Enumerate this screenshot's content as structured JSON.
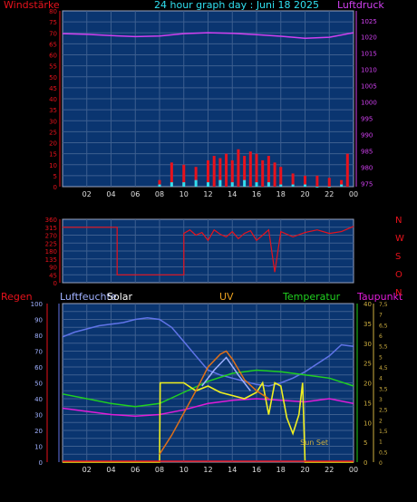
{
  "header": {
    "left_label": "Windstärke",
    "title": "24 hour graph day : Juni 18 2025",
    "right_label": "Luftdruck"
  },
  "colors": {
    "plot_bg": "#0a3570",
    "grid": "#3d5f8f",
    "red": "#e8121c",
    "magenta": "#d040f0",
    "cyan": "#30e0f0",
    "white": "#ffffff",
    "periwinkle": "#8b95f5",
    "blue": "#6074e8",
    "lightblue": "#9fb0ff",
    "orange": "#e07018",
    "green": "#20d020",
    "yellow": "#f0f020",
    "pink": "#e01cd8",
    "gold": "#d0b040"
  },
  "chart_data": [
    {
      "type": "bar",
      "name_id": "wind",
      "xlabel": "",
      "x_ticks": [
        "02",
        "04",
        "06",
        "08",
        "10",
        "12",
        "14",
        "16",
        "18",
        "20",
        "22",
        "00"
      ],
      "y_left_ticks": [
        "0",
        "5",
        "10",
        "15",
        "20",
        "25",
        "30",
        "35",
        "40",
        "45",
        "50",
        "55",
        "60",
        "65",
        "70",
        "75",
        "80"
      ],
      "y_left_range": [
        0,
        80
      ],
      "y_right_ticks": [
        "975",
        "980",
        "985",
        "990",
        "995",
        "1000",
        "1005",
        "1010",
        "1015",
        "1020",
        "1025"
      ],
      "y_right_range": [
        974,
        1028
      ],
      "series": [
        {
          "color": "magenta",
          "axis": "right",
          "x": [
            0,
            2,
            4,
            6,
            8,
            10,
            12,
            14,
            16,
            18,
            20,
            22,
            24
          ],
          "y": [
            1021.0,
            1020.8,
            1020.4,
            1020.1,
            1020.3,
            1021.0,
            1021.3,
            1021.1,
            1020.7,
            1020.2,
            1019.6,
            1019.9,
            1021.3
          ]
        },
        {
          "color": "red",
          "axis": "left",
          "x": [
            8.0,
            9.0,
            10.0,
            11.0,
            12.0,
            12.5,
            13.0,
            13.5,
            14.0,
            14.5,
            15.0,
            15.5,
            16.0,
            16.5,
            17.0,
            17.5,
            18.0,
            19.0,
            20.0,
            21.0,
            22.0,
            23.0,
            23.5
          ],
          "y": [
            3,
            11,
            10,
            9,
            12,
            14,
            13,
            15,
            12,
            17,
            14,
            16,
            15,
            12,
            14,
            11,
            9,
            6,
            5,
            5,
            4,
            3,
            15
          ]
        },
        {
          "color": "cyan",
          "axis": "left",
          "x": [
            8.0,
            9.0,
            10.0,
            11.0,
            12.0,
            13.0,
            14.0,
            15.0,
            16.0,
            17.0,
            18.0,
            19.0,
            20.0,
            21.0,
            22.0,
            23.0
          ],
          "y": [
            1,
            2,
            2,
            3,
            2,
            3,
            2,
            3,
            2,
            2,
            1,
            1,
            1,
            0,
            0,
            1
          ]
        }
      ]
    },
    {
      "type": "line",
      "name_id": "wind_direction",
      "x_ticks": [],
      "y_left_ticks": [
        "0",
        "45",
        "90",
        "135",
        "180",
        "225",
        "270",
        "315",
        "360"
      ],
      "y_left_range": [
        0,
        360
      ],
      "y_right_ticks": [
        "N",
        "W",
        "S",
        "O",
        "N"
      ],
      "series": [
        {
          "color": "red",
          "x": [
            0,
            4.5,
            4.5,
            10.0,
            10.0,
            10.5,
            11.0,
            11.5,
            12.0,
            12.5,
            13.0,
            13.5,
            14.0,
            14.5,
            15.0,
            15.5,
            16.0,
            16.5,
            17.0,
            17.5,
            18.0,
            19.0,
            20.0,
            21.0,
            22.0,
            23.0,
            24.0
          ],
          "y": [
            315,
            315,
            45,
            45,
            280,
            300,
            270,
            285,
            240,
            300,
            275,
            260,
            290,
            250,
            280,
            295,
            240,
            270,
            300,
            60,
            290,
            260,
            285,
            300,
            280,
            290,
            320
          ]
        }
      ]
    },
    {
      "type": "line",
      "name_id": "climate",
      "header_labels": [
        "Regen",
        "Luftfeuchte",
        "Solar",
        "UV",
        "Temperatur",
        "Taupunkt"
      ],
      "x_ticks": [
        "02",
        "04",
        "06",
        "08",
        "10",
        "12",
        "14",
        "16",
        "18",
        "20",
        "22",
        "00"
      ],
      "y_left_ticks": [
        "0",
        "10",
        "20",
        "30",
        "40",
        "50",
        "60",
        "70",
        "80",
        "90",
        "100"
      ],
      "y_left_range": [
        0,
        100
      ],
      "y_mid_ticks": [
        "0",
        "5",
        "10",
        "15",
        "20",
        "25",
        "30",
        "35",
        "40"
      ],
      "y_mid_range": [
        0,
        40
      ],
      "y_right_ticks": [
        "0",
        "0,5",
        "1",
        "1,5",
        "2",
        "2,5",
        "3",
        "3,5",
        "4",
        "4,5",
        "5",
        "5,5",
        "6",
        "6,5",
        "7",
        "7,5"
      ],
      "y_right_range": [
        0,
        7.5
      ],
      "annotation": "Sun Set",
      "series": [
        {
          "color": "blue",
          "name": "Luftfeuchte",
          "x": [
            0,
            1,
            2,
            3,
            4,
            5,
            6,
            7,
            8,
            9,
            10,
            11,
            12,
            13,
            14,
            15,
            16,
            17,
            18,
            19,
            20,
            21,
            22,
            23,
            24
          ],
          "y": [
            79,
            82,
            84,
            86,
            87,
            88,
            90,
            91,
            90,
            85,
            76,
            67,
            58,
            55,
            53,
            51,
            49,
            48,
            50,
            53,
            57,
            62,
            67,
            74,
            73
          ]
        },
        {
          "color": "green",
          "name": "Temperatur",
          "x": [
            0,
            2,
            4,
            6,
            8,
            10,
            12,
            14,
            16,
            18,
            20,
            22,
            24
          ],
          "y": [
            43,
            40,
            37,
            35,
            37,
            44,
            51,
            56,
            58,
            57,
            55,
            53,
            48
          ]
        },
        {
          "color": "pink",
          "name": "Taupunkt",
          "x": [
            0,
            2,
            4,
            6,
            8,
            10,
            12,
            14,
            16,
            18,
            20,
            22,
            24
          ],
          "y": [
            34,
            32,
            30,
            29,
            30,
            33,
            37,
            39,
            40,
            39,
            38,
            40,
            37
          ]
        },
        {
          "color": "yellow",
          "name": "UV",
          "x": [
            0,
            8.0,
            8.05,
            9.0,
            10.0,
            11.0,
            12.0,
            13.0,
            14.0,
            15.0,
            16.0,
            16.5,
            17.0,
            17.5,
            18.0,
            18.5,
            19.0,
            19.5,
            19.8,
            20.0,
            24
          ],
          "y": [
            0,
            0,
            50,
            50,
            50,
            45,
            48,
            44,
            42,
            40,
            44,
            50,
            30,
            50,
            48,
            28,
            18,
            30,
            50,
            0,
            0
          ]
        },
        {
          "color": "orange",
          "name": "Solar",
          "x": [
            8.0,
            9.0,
            10.0,
            11.0,
            12.0,
            13.0,
            13.5,
            14.0,
            15.0,
            16.0,
            17.0
          ],
          "y": [
            5,
            17,
            31,
            45,
            60,
            68,
            70,
            65,
            52,
            45,
            40
          ]
        },
        {
          "color": "lightblue",
          "name": "Solar-peak",
          "x": [
            11.5,
            12.5,
            13.5,
            14.5,
            15.5
          ],
          "y": [
            48,
            58,
            66,
            55,
            45
          ]
        }
      ]
    }
  ]
}
